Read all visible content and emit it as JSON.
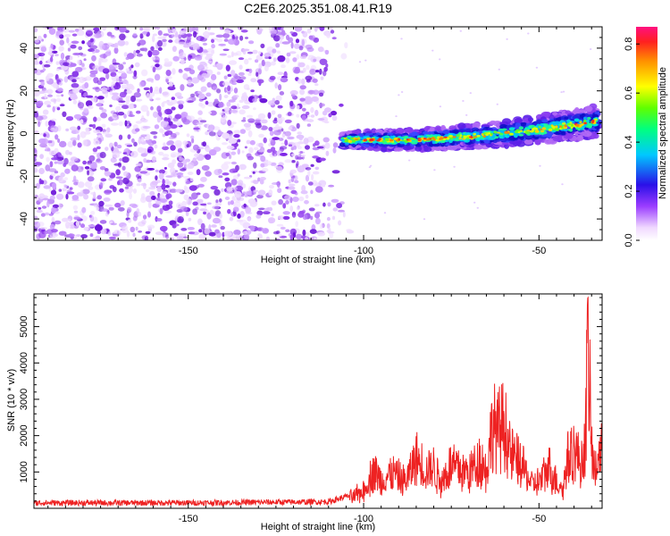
{
  "title": "C2E6.2025.351.08.41.R19",
  "colors": {
    "scatter": "#7a1fe8",
    "snr_line": "#ee2222",
    "frame": "#000000"
  },
  "chart_data": [
    {
      "type": "heatmap",
      "name": "spectrogram",
      "xlabel": "Height of straight line (km)",
      "ylabel": "Frequency (Hz)",
      "xlim": [
        -194,
        -32
      ],
      "ylim": [
        -50,
        50
      ],
      "xticks": [
        -150,
        -100,
        -50
      ],
      "yticks": [
        -40,
        -20,
        0,
        20,
        40
      ],
      "noise_region": {
        "x": [
          -194,
          -105
        ],
        "y": [
          -50,
          50
        ]
      },
      "signal_track": {
        "x": [
          -106,
          -100,
          -90,
          -80,
          -70,
          -60,
          -50,
          -40,
          -33
        ],
        "y": [
          -3,
          -3,
          -3,
          -2.5,
          -1.5,
          0,
          2,
          4,
          6
        ]
      },
      "colorbar": {
        "label": "Normalized spectral amplitude",
        "range": [
          0.0,
          0.87
        ],
        "ticks": [
          "0.0",
          "0.2",
          "0.4",
          "0.6",
          "0.8"
        ],
        "colormap": "rainbow (white-purple-blue-cyan-green-yellow-red)"
      }
    },
    {
      "type": "line",
      "name": "snr",
      "xlabel": "Height of straight line (km)",
      "ylabel": "SNR (10 * v/v)",
      "xlim": [
        -194,
        -32
      ],
      "ylim": [
        0,
        5900
      ],
      "xticks": [
        -150,
        -100,
        -50
      ],
      "yticks": [
        1000,
        2000,
        3000,
        4000,
        5000
      ],
      "envelope": {
        "x": [
          -194,
          -150,
          -110,
          -104,
          -100,
          -97,
          -95,
          -92,
          -88,
          -85,
          -82,
          -80,
          -78,
          -75,
          -72,
          -70,
          -67,
          -65,
          -63,
          -62,
          -60,
          -58,
          -55,
          -52,
          -50,
          -47,
          -45,
          -43,
          -42,
          -40,
          -38,
          -37,
          -36,
          -35,
          -34,
          -33,
          -32
        ],
        "y": [
          150,
          150,
          180,
          350,
          600,
          1300,
          900,
          1200,
          900,
          1700,
          1300,
          1400,
          900,
          1500,
          1300,
          1200,
          1700,
          1300,
          3000,
          2500,
          3000,
          1800,
          1500,
          800,
          900,
          1400,
          900,
          700,
          1700,
          2000,
          1500,
          2000,
          5600,
          2000,
          1200,
          1800,
          2200
        ]
      }
    }
  ]
}
